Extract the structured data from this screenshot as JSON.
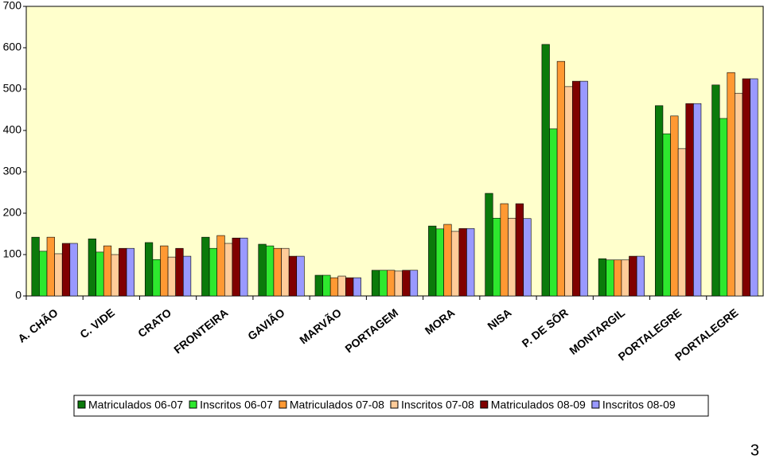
{
  "chart_data": {
    "type": "bar",
    "categories": [
      "A. CHÃO",
      "C. VIDE",
      "CRATO",
      "FRONTEIRA",
      "GAVIÃO",
      "MARVÃO",
      "PORTAGEM",
      "MORA",
      "NISA",
      "P. DE SÔR",
      "MONTARGIL",
      "PORTALEGRE",
      "PORTALEGRE"
    ],
    "series": [
      {
        "name": "Matriculados 06-07",
        "color": "#0b7a0b",
        "values": [
          142,
          138,
          129,
          142,
          125,
          50,
          62,
          169,
          248,
          608,
          90,
          460,
          510
        ]
      },
      {
        "name": "Inscritos 06-07",
        "color": "#2ee82e",
        "values": [
          108,
          106,
          88,
          115,
          121,
          50,
          62,
          162,
          188,
          404,
          87,
          392,
          429
        ]
      },
      {
        "name": "Matriculados 07-08",
        "color": "#ff9933",
        "values": [
          142,
          121,
          121,
          146,
          115,
          44,
          62,
          173,
          223,
          567,
          87,
          435,
          540
        ]
      },
      {
        "name": "Inscritos 07-08",
        "color": "#ffcc99",
        "values": [
          102,
          100,
          94,
          127,
          115,
          48,
          60,
          156,
          188,
          506,
          87,
          356,
          490
        ]
      },
      {
        "name": "Matriculados 08-09",
        "color": "#800000",
        "values": [
          127,
          115,
          115,
          140,
          96,
          44,
          62,
          163,
          223,
          519,
          96,
          465,
          525
        ]
      },
      {
        "name": "Inscritos 08-09",
        "color": "#9999ff",
        "values": [
          127,
          115,
          96,
          140,
          96,
          44,
          62,
          163,
          187,
          519,
          96,
          465,
          525
        ]
      }
    ],
    "ylim": [
      0,
      700
    ],
    "yticks": [
      0,
      100,
      200,
      300,
      400,
      500,
      600,
      700
    ],
    "grid": false
  },
  "page_number": "3"
}
